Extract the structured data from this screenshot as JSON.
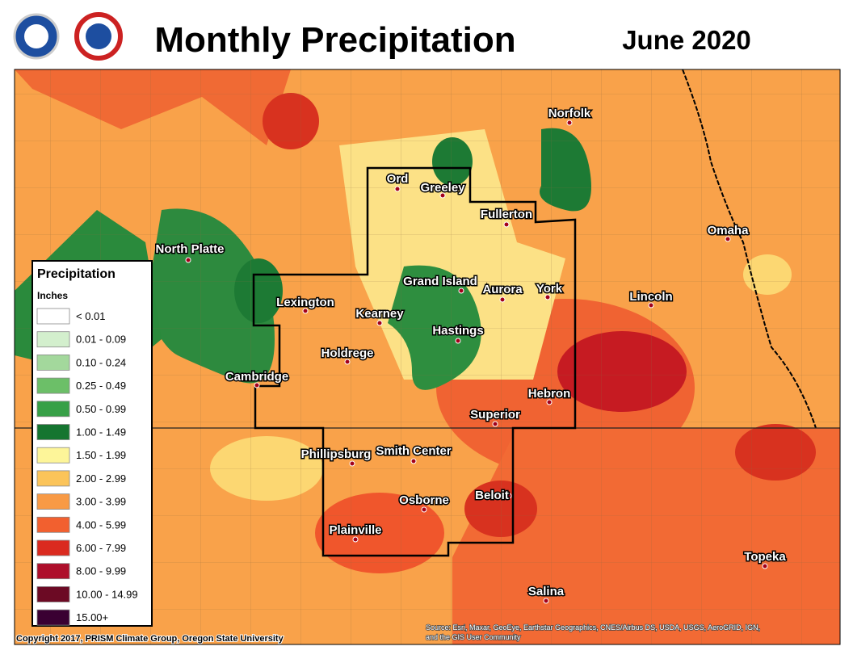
{
  "header": {
    "title": "Monthly Precipitation",
    "date": "June 2020"
  },
  "legend": {
    "title": "Precipitation",
    "units": "Inches",
    "entries": [
      {
        "label": "< 0.01",
        "color": "#ffffff"
      },
      {
        "label": "0.01 - 0.09",
        "color": "#d3efcd"
      },
      {
        "label": "0.10 - 0.24",
        "color": "#a3d89c"
      },
      {
        "label": "0.25 - 0.49",
        "color": "#6cbf68"
      },
      {
        "label": "0.50 - 0.99",
        "color": "#37a047"
      },
      {
        "label": "1.00 - 1.49",
        "color": "#157530"
      },
      {
        "label": "1.50 - 1.99",
        "color": "#fdf599"
      },
      {
        "label": "2.00 - 2.99",
        "color": "#fbc45a"
      },
      {
        "label": "3.00 - 3.99",
        "color": "#f89a45"
      },
      {
        "label": "4.00 - 5.99",
        "color": "#f2602f"
      },
      {
        "label": "6.00 - 7.99",
        "color": "#da2a1f"
      },
      {
        "label": "8.00 - 9.99",
        "color": "#ae0f2b"
      },
      {
        "label": "10.00 - 14.99",
        "color": "#6c0a24"
      },
      {
        "label": "15.00+",
        "color": "#3a0032"
      }
    ]
  },
  "cities": [
    {
      "name": "North Platte"
    },
    {
      "name": "Lexington"
    },
    {
      "name": "Kearney"
    },
    {
      "name": "Holdrege"
    },
    {
      "name": "Cambridge"
    },
    {
      "name": "Ord"
    },
    {
      "name": "Greeley"
    },
    {
      "name": "Fullerton"
    },
    {
      "name": "Grand Island"
    },
    {
      "name": "Aurora"
    },
    {
      "name": "York"
    },
    {
      "name": "Hastings"
    },
    {
      "name": "Norfolk"
    },
    {
      "name": "Omaha"
    },
    {
      "name": "Lincoln"
    },
    {
      "name": "Hebron"
    },
    {
      "name": "Superior"
    },
    {
      "name": "Phillipsburg"
    },
    {
      "name": "Smith Center"
    },
    {
      "name": "Osborne"
    },
    {
      "name": "Beloit"
    },
    {
      "name": "Plainville"
    },
    {
      "name": "Salina"
    },
    {
      "name": "Topeka"
    }
  ],
  "footer": {
    "copyright": "Copyright 2017, PRISM Climate Group, Oregon State University",
    "source1": "Source: Esri, Maxar, GeoEye, Earthstar Geographics, CNES/Airbus DS, USDA, USGS, AeroGRID, IGN,",
    "source2": "and the GIS User Community"
  }
}
